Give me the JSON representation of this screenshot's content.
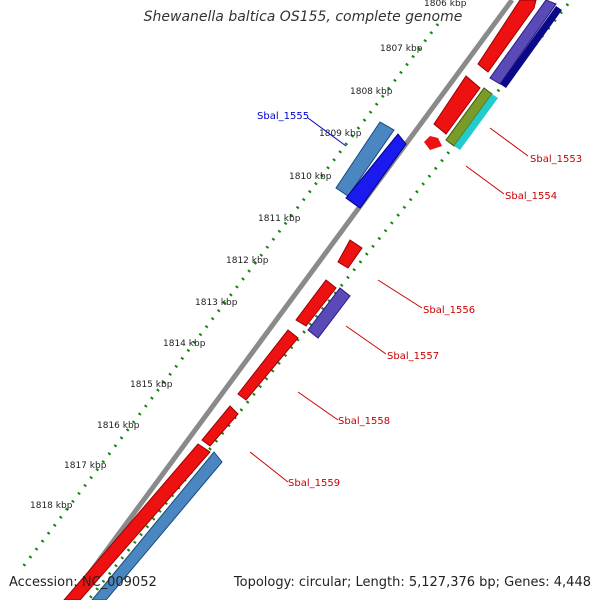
{
  "title": "Shewanella baltica OS155, complete genome",
  "footer": {
    "accession": "Accession: NC_009052",
    "summary": "Topology: circular; Length: 5,127,376 bp; Genes: 4,448"
  },
  "ticks": [
    "1806 kbp",
    "1807 kbp",
    "1808 kbp",
    "1809 kbp",
    "1810 kbp",
    "1811 kbp",
    "1812 kbp",
    "1813 kbp",
    "1814 kbp",
    "1815 kbp",
    "1816 kbp",
    "1817 kbp",
    "1818 kbp"
  ],
  "gene_labels": [
    {
      "id": "Sbal_1555",
      "text": "Sbal_1555",
      "color": "#0000cc"
    },
    {
      "id": "Sbal_1553",
      "text": "Sbal_1553",
      "color": "#cc0000"
    },
    {
      "id": "Sbal_1554",
      "text": "Sbal_1554",
      "color": "#cc0000"
    },
    {
      "id": "Sbal_1556",
      "text": "Sbal_1556",
      "color": "#cc0000"
    },
    {
      "id": "Sbal_1557",
      "text": "Sbal_1557",
      "color": "#cc0000"
    },
    {
      "id": "Sbal_1558",
      "text": "Sbal_1558",
      "color": "#cc0000"
    },
    {
      "id": "Sbal_1559",
      "text": "Sbal_1559",
      "color": "#cc0000"
    }
  ],
  "colors": {
    "backbone": "#8a8a8a",
    "gene_red": "#ee1111",
    "gene_blue": "#1a1aee",
    "gene_steel": "#4a86c0",
    "gene_purple": "#5a4ab8",
    "gene_navy": "#0a0a88",
    "gene_olive": "#7a9a2a",
    "gene_cyan": "#22cccc",
    "tick_green": "#118811",
    "label_red": "#cc0000",
    "label_blue": "#0000cc"
  }
}
